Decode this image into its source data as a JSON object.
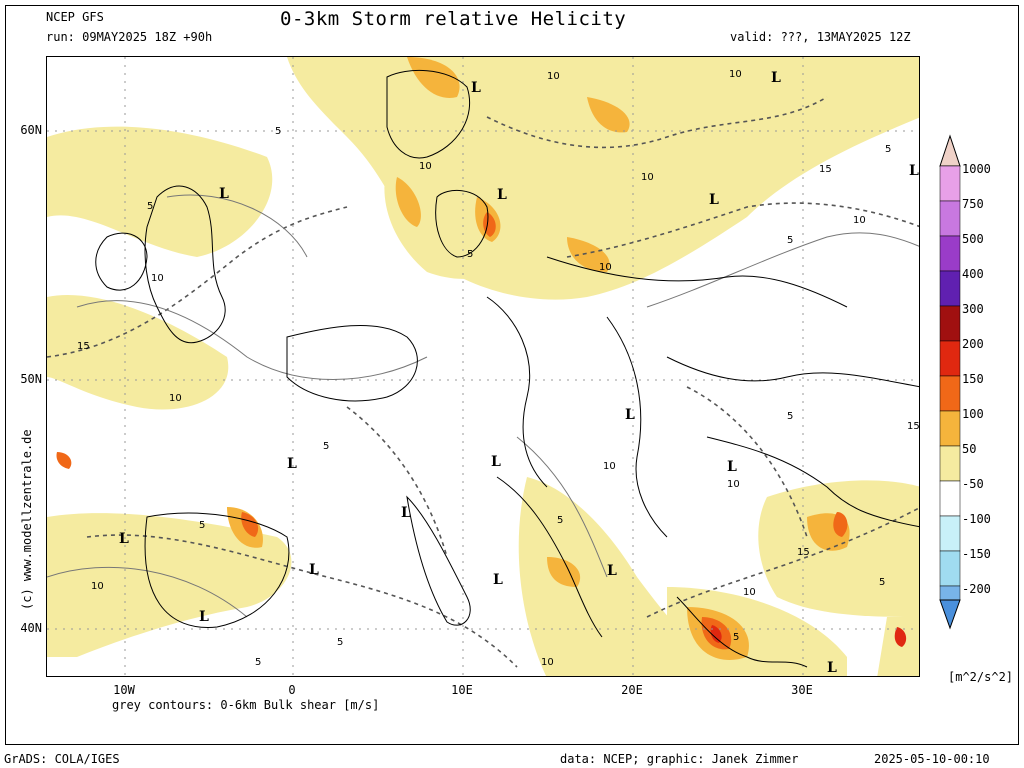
{
  "header": {
    "model": "NCEP GFS",
    "run": "run: 09MAY2025 18Z +90h",
    "title": "0-3km Storm relative Helicity",
    "valid": "valid: ???, 13MAY2025 12Z"
  },
  "axes": {
    "lat_labels": [
      "60N",
      "50N",
      "40N"
    ],
    "lon_labels": [
      "10W",
      "0",
      "10E",
      "20E",
      "30E"
    ]
  },
  "contour_note": "grey contours: 0-6km Bulk shear [m/s]",
  "colorbar": {
    "labels": [
      "1000",
      "750",
      "500",
      "400",
      "300",
      "200",
      "150",
      "100",
      "50",
      "-50",
      "-100",
      "-150",
      "-200"
    ],
    "units": "[m^2/s^2]",
    "colors": [
      "#f0d2c8",
      "#e8a0e8",
      "#c878e0",
      "#9a3cc8",
      "#6020b0",
      "#a01010",
      "#e02810",
      "#f06818",
      "#f5b43c",
      "#f5eba0",
      "#ffffff",
      "#c8f0f8",
      "#a0dcf0",
      "#78b4e8",
      "#4a90dc"
    ]
  },
  "map_labels": {
    "lows": [
      "L",
      "L",
      "L",
      "L",
      "L",
      "L",
      "L",
      "L",
      "L",
      "L",
      "L",
      "L",
      "L",
      "L",
      "L",
      "L",
      "L"
    ],
    "contour_values": [
      "10",
      "10",
      "5",
      "10",
      "5",
      "15",
      "10",
      "5",
      "10",
      "10",
      "15",
      "5",
      "10",
      "5",
      "15",
      "10",
      "10",
      "5",
      "5",
      "5",
      "5",
      "10",
      "15",
      "10",
      "10",
      "5",
      "10",
      "5",
      "5",
      "5"
    ]
  },
  "watermark": "(c) www.modellzentrale.de",
  "footer": {
    "left": "GrADS: COLA/IGES",
    "credit": "data: NCEP; graphic: Janek Zimmer",
    "timestamp": "2025-05-10-00:10"
  }
}
